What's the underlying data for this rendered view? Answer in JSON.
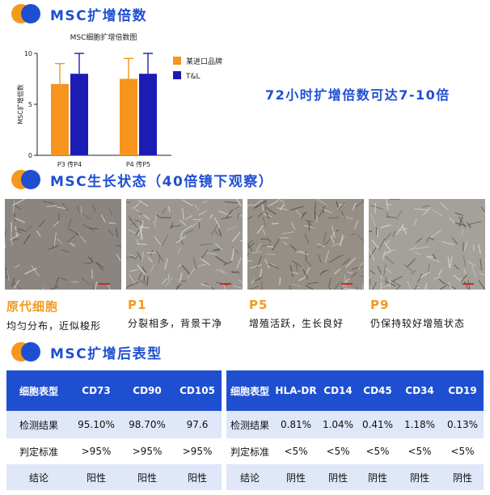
{
  "sections": {
    "expansion_title": "MSC扩增倍数",
    "growth_title": "MSC生长状态（40倍镜下观察）",
    "phenotype_title": "MSC扩增后表型"
  },
  "chart_callout": "72小时扩增倍数可达7-10倍",
  "chart_data": {
    "type": "bar",
    "title": "MSC细胞扩增倍数图",
    "ylabel": "MSC扩增倍数",
    "xlabel": "",
    "ylim": [
      0,
      10
    ],
    "yticks": [
      0,
      5,
      10
    ],
    "categories": [
      "P3 传P4",
      "P4 传P5"
    ],
    "series": [
      {
        "name": "某进口品牌",
        "color": "#f7941d",
        "values": [
          7.0,
          7.5
        ],
        "errors": [
          2.0,
          2.0
        ]
      },
      {
        "name": "T&L",
        "color": "#1c1cb5",
        "values": [
          8.0,
          8.0
        ],
        "errors": [
          2.0,
          2.0
        ]
      }
    ],
    "legend_position": "top-right",
    "grid": false
  },
  "growth": [
    {
      "title": "原代细胞",
      "desc": "均匀分布，近似梭形",
      "tone": "#8a8580"
    },
    {
      "title": "P1",
      "desc": "分裂相多，背景干净",
      "tone": "#9b9790"
    },
    {
      "title": "P5",
      "desc": "增殖活跃，生长良好",
      "tone": "#958f86"
    },
    {
      "title": "P9",
      "desc": "仍保持较好增殖状态",
      "tone": "#a4a19b"
    }
  ],
  "table_left": {
    "header": [
      "细胞表型",
      "CD73",
      "CD90",
      "CD105"
    ],
    "rows": [
      [
        "检测结果",
        "95.10%",
        "98.70%",
        "97.6"
      ],
      [
        "判定标准",
        ">95%",
        ">95%",
        ">95%"
      ],
      [
        "结论",
        "阳性",
        "阳性",
        "阳性"
      ]
    ]
  },
  "table_right": {
    "header": [
      "细胞表型",
      "HLA-DR",
      "CD14",
      "CD45",
      "CD34",
      "CD19"
    ],
    "rows": [
      [
        "检测结果",
        "0.81%",
        "1.04%",
        "0.41%",
        "1.18%",
        "0.13%"
      ],
      [
        "判定标准",
        "<5%",
        "<5%",
        "<5%",
        "<5%",
        "<5%"
      ],
      [
        "结论",
        "阴性",
        "阴性",
        "阴性",
        "阴性",
        "阴性"
      ]
    ]
  },
  "colors": {
    "brand_blue": "#1f4fd1",
    "brand_orange": "#f39a1e",
    "row_tint": "#dfe7f8"
  }
}
